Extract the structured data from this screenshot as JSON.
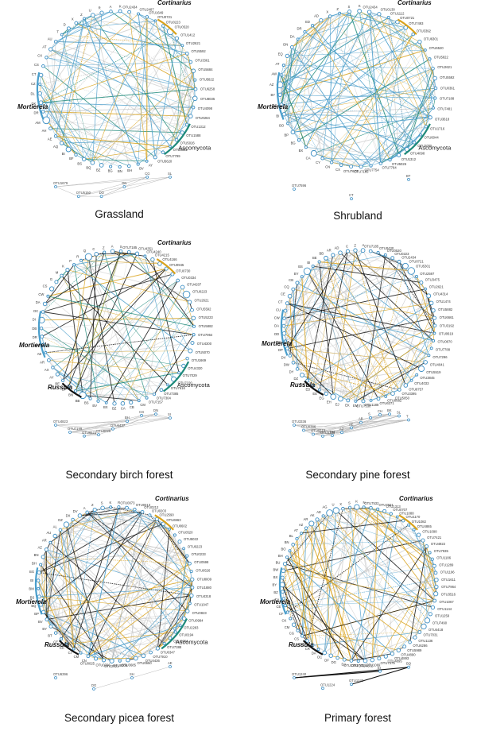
{
  "palette": {
    "blue": "#4a9ecb",
    "teal": "#1f8a7a",
    "gold": "#d9a21b",
    "grey": "#b9b9b9",
    "black": "#111111",
    "node_fill": "#ffffff",
    "node_stroke": "#3d8fc4"
  },
  "panels": [
    {
      "id": "grassland",
      "label": "Grassland",
      "genus_labels": [
        "Cortinarius",
        "Mortierela"
      ],
      "group_labels": [
        "Ascomycota"
      ],
      "node_labels": [
        "OTU2434",
        "OTU2487",
        "OTU1649",
        "OTU0721",
        "OTU0223",
        "OTU0520",
        "OTU1412",
        "OTU2621",
        "OTU5592",
        "OTU3361",
        "OTU5684",
        "OTU5822",
        "OTU6258",
        "OTU8035",
        "OTU4098",
        "OTU0284",
        "OTU1312",
        "OTU1588",
        "OTU5026",
        "OTU5082",
        "OTU7799",
        "OTU5620",
        "OTU1679",
        "OTU5150",
        "AY",
        "BV",
        "BH",
        "BN",
        "BG",
        "BZ",
        "BQ",
        "BS",
        "BF",
        "BI",
        "AQ",
        "AE",
        "AH",
        "AM",
        "DR",
        "DK",
        "DL",
        "CZ",
        "CT",
        "CS",
        "CX",
        "AT",
        "AU",
        "T",
        "D",
        "X",
        "Z",
        "U",
        "R",
        "A",
        "K",
        "DO",
        "DN",
        "CG",
        "SL"
      ],
      "isolated_labels": [
        "OTU1679",
        "OTU5150",
        "DO",
        "DN",
        "CG",
        "SL"
      ]
    },
    {
      "id": "shrubland",
      "label": "Shrubland",
      "genus_labels": [
        "Cortinarius",
        "Mortierela"
      ],
      "group_labels": [
        "Ascomycota"
      ],
      "node_labels": [
        "OTU2434",
        "OTU0130",
        "OTU1112",
        "OTU0721",
        "OTU7493",
        "OTU3392",
        "OTU6301",
        "OTU6520",
        "OTU5822",
        "OTU2621",
        "OTU5592",
        "OTU0361",
        "OTU7188",
        "OTU7481",
        "OTU3618",
        "OTU1716",
        "OTU6044",
        "OTU2005",
        "OTU4098",
        "OTU1312",
        "OTU5026",
        "OTU7784",
        "OTU7754",
        "OTU7165",
        "OTU7673",
        "OTU7596",
        "CX",
        "CN",
        "CY",
        "CA",
        "BX",
        "BG",
        "BP",
        "BO",
        "BI",
        "BZ",
        "BY",
        "AZ",
        "AW",
        "AT",
        "EQ",
        "DN",
        "DA",
        "DR",
        "ED",
        "AD",
        "X",
        "Z",
        "S",
        "K",
        "CT",
        "BT"
      ],
      "isolated_labels": [
        "OTU7596",
        "CT",
        "BT"
      ]
    },
    {
      "id": "birch",
      "label": "Secondary birch forest",
      "genus_labels": [
        "Cortinarius",
        "Mortierela",
        "Russula"
      ],
      "group_labels": [
        "Ascomycota"
      ],
      "node_labels": [
        "OTU7185",
        "OTU4351",
        "OTU4240",
        "OTU4215",
        "OTU4166",
        "OTU0945",
        "OTU0730",
        "OTU0334",
        "OTU4207",
        "OTU0223",
        "OTU2621",
        "OTU5592",
        "OTU5223",
        "OTU5882",
        "OTU7964",
        "OTU4300",
        "OTU5070",
        "OTU1669",
        "OTU4320",
        "OTU7029",
        "OTU7220",
        "OTU7616",
        "OTU7385",
        "OTU7304",
        "OTU7157",
        "OTU4823",
        "OTU7199",
        "OTU6523",
        "OTU0029",
        "OTU4437",
        "CM",
        "CB",
        "CA",
        "BZ",
        "BX",
        "BV",
        "BS",
        "BB",
        "BN",
        "BF",
        "BE",
        "AY",
        "AX",
        "AR",
        "AE",
        "AH",
        "DR",
        "DB",
        "DI",
        "DC",
        "DA",
        "CW",
        "CS",
        "G",
        "M",
        "K",
        "P",
        "R",
        "Q",
        "C",
        "Z",
        "A",
        "S",
        "BH",
        "CG",
        "DN",
        "SI"
      ],
      "isolated_labels": [
        "OTU6523",
        "OTU0029",
        "OTU4437",
        "OTU4823",
        "OTU7199",
        "BH",
        "CG",
        "DN",
        "SI"
      ]
    },
    {
      "id": "pine",
      "label": "Secondary pine forest",
      "genus_labels": [
        "Mortierela",
        "Russula"
      ],
      "group_labels": [],
      "node_labels": [
        "OTU7185",
        "OTU0430",
        "OTU0520",
        "OTU0223",
        "OTU2434",
        "OTU0721",
        "OTU5301",
        "OTU2597",
        "OTU3475",
        "OTU2621",
        "OTU4314",
        "OTU1474",
        "OTU5882",
        "OTU6661",
        "OTU3192",
        "OTU0619",
        "OTU0870",
        "OTU7788",
        "OTU7296",
        "OTU4041",
        "OTU5519",
        "OTU3845",
        "OTU4033",
        "OTU8757",
        "OTU3395",
        "OTU5050",
        "OTU0882",
        "OTU3336",
        "OTU6371",
        "OTU1188",
        "OTU7530",
        "OTU0386",
        "OTU5518",
        "OTU3336",
        "EM",
        "EK",
        "EJ",
        "EH",
        "EG",
        "EE",
        "ED",
        "EA",
        "DZ",
        "DY",
        "DW",
        "DV",
        "DP",
        "DH",
        "DD",
        "DA",
        "CW",
        "CU",
        "CT",
        "CE",
        "CH",
        "CQ",
        "CB",
        "BY",
        "BS",
        "BI",
        "BE",
        "BB",
        "AR",
        "AZ",
        "AE",
        "AB",
        "AD",
        "S",
        "C",
        "Z",
        "A",
        "CH",
        "BK",
        "SL",
        "T"
      ],
      "isolated_labels": [
        "OTU0386",
        "OTU5518",
        "OTU3336",
        "CH",
        "BK",
        "SL",
        "AZ",
        "AE",
        "AB",
        "T",
        "S"
      ]
    },
    {
      "id": "picea",
      "label": "Secondary picea forest",
      "genus_labels": [
        "Cortinarius",
        "Mortierela",
        "Russula"
      ],
      "group_labels": [
        "Ascomycota"
      ],
      "node_labels": [
        "OTU0073",
        "OTU0313",
        "OTU0212",
        "OTU0203",
        "OTU2590",
        "OTU6963",
        "OTU0602",
        "OTU0520",
        "OTU5022",
        "OTU0223",
        "OTU0233",
        "OTU0598",
        "OTU0526",
        "OTU8009",
        "OTU1880",
        "OTU4318",
        "OTU1047",
        "OTU0823",
        "OTU0984",
        "OTU2283",
        "OTU0194",
        "OTU0984",
        "OTU7388",
        "OTU0347",
        "OTU7910",
        "OTU4436",
        "OTU0650",
        "OTU3685",
        "OTU8006",
        "OTU2021",
        "OTU0396",
        "OTU0025",
        "OTU6396",
        "CN",
        "CM",
        "CI",
        "CC",
        "CE",
        "BT",
        "BY",
        "BV",
        "BP",
        "BQ",
        "BS",
        "BM",
        "BI",
        "BG",
        "BH",
        "BN",
        "AZ",
        "AR",
        "AU",
        "AL",
        "DZ",
        "DX",
        "DV",
        "DG",
        "SH",
        "AE",
        "A",
        "Z",
        "S",
        "K",
        "R"
      ],
      "isolated_labels": [
        "OTU6396",
        "DG",
        "SH",
        "AE"
      ]
    },
    {
      "id": "primary",
      "label": "Primary forest",
      "genus_labels": [
        "Cortinarius",
        "Mortierela",
        "Russula"
      ],
      "group_labels": [],
      "node_labels": [
        "OTU7532",
        "OTU7501",
        "OTU1313",
        "OTU0707",
        "OTU1088",
        "OTU1170",
        "OTU1082",
        "OTU4865",
        "OTU1098",
        "OTU7421",
        "OTU4922",
        "OTU7935",
        "OTU1186",
        "OTU1289",
        "OTU1196",
        "OTU1611",
        "OTU7964",
        "OTU3516",
        "OTU1067",
        "OTU1144",
        "OTU1259",
        "OTU7490",
        "OTU4418",
        "OTU7031",
        "OTU1136",
        "OTU6286",
        "OTU5989",
        "OTU4890",
        "OTU4893",
        "OTU4895",
        "OTU7379",
        "OTU1069",
        "OTU4601",
        "OTU7433",
        "OTU1291",
        "OTU1240",
        "OTU1224",
        "OTU1249",
        "DJ",
        "DG",
        "DF",
        "DC",
        "DA",
        "CR",
        "CT",
        "CS",
        "CG",
        "CM",
        "CK",
        "CF",
        "CE",
        "CA",
        "BZ",
        "BY",
        "BX",
        "BW",
        "BU",
        "BH",
        "BO",
        "BN",
        "BL",
        "AT",
        "AZ",
        "AR",
        "AK",
        "AE",
        "AG",
        "U",
        "X",
        "S",
        "K",
        "N",
        "EI",
        "BQ"
      ],
      "isolated_labels": [
        "OTU1240",
        "OTU1224",
        "OTU1249",
        "EI",
        "BQ"
      ]
    }
  ]
}
